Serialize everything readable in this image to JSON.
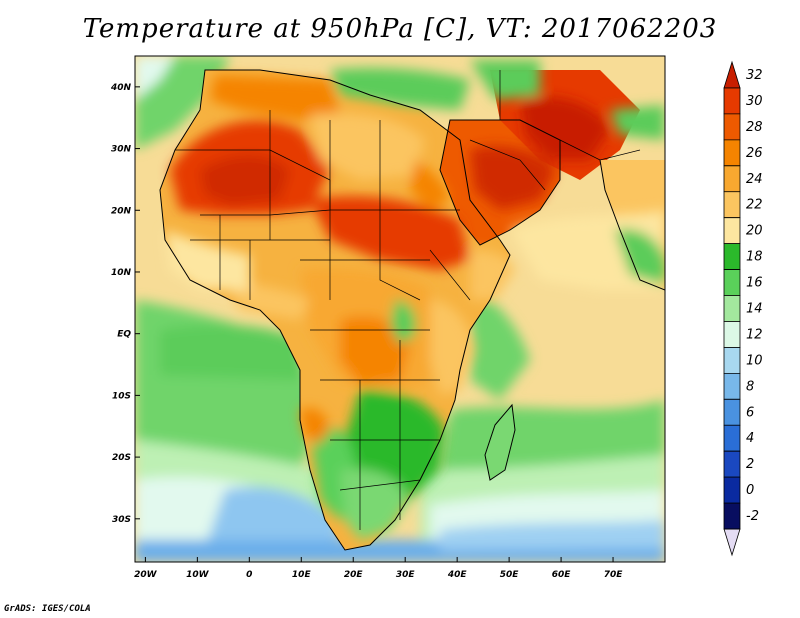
{
  "title": "Temperature at 950hPa [C], VT: 2017062203",
  "credit": "GrADS: IGES/COLA",
  "map": {
    "lon_range": [
      -22,
      80
    ],
    "lat_range": [
      -37,
      45
    ],
    "ocean_color": "#f5e3a0",
    "border_color": "#000000",
    "x_ticks": [
      {
        "lon": -20,
        "label": "20W"
      },
      {
        "lon": -10,
        "label": "10W"
      },
      {
        "lon": 0,
        "label": "0"
      },
      {
        "lon": 10,
        "label": "10E"
      },
      {
        "lon": 20,
        "label": "20E"
      },
      {
        "lon": 30,
        "label": "30E"
      },
      {
        "lon": 40,
        "label": "40E"
      },
      {
        "lon": 50,
        "label": "50E"
      },
      {
        "lon": 60,
        "label": "60E"
      },
      {
        "lon": 70,
        "label": "70E"
      }
    ],
    "y_ticks": [
      {
        "lat": 40,
        "label": "40N"
      },
      {
        "lat": 30,
        "label": "30N"
      },
      {
        "lat": 20,
        "label": "20N"
      },
      {
        "lat": 10,
        "label": "10N"
      },
      {
        "lat": 0,
        "label": "EQ"
      },
      {
        "lat": -10,
        "label": "10S"
      },
      {
        "lat": -20,
        "label": "20S"
      },
      {
        "lat": -30,
        "label": "30S"
      }
    ]
  },
  "colorbar": {
    "levels": [
      "32",
      "30",
      "28",
      "26",
      "24",
      "22",
      "20",
      "18",
      "16",
      "14",
      "12",
      "10",
      "8",
      "6",
      "4",
      "2",
      "0",
      "-2"
    ],
    "colors": [
      "#c81e00",
      "#e63a00",
      "#ee5a00",
      "#f58400",
      "#f8a830",
      "#fbc560",
      "#fde6a0",
      "#2bb92b",
      "#5ad05a",
      "#a3e89e",
      "#dcf8e6",
      "#a8d8f0",
      "#78b8ea",
      "#4a92e0",
      "#2a6ed6",
      "#1a48c0",
      "#0a2aa0",
      "#080e60",
      "#e4dcf4"
    ]
  }
}
